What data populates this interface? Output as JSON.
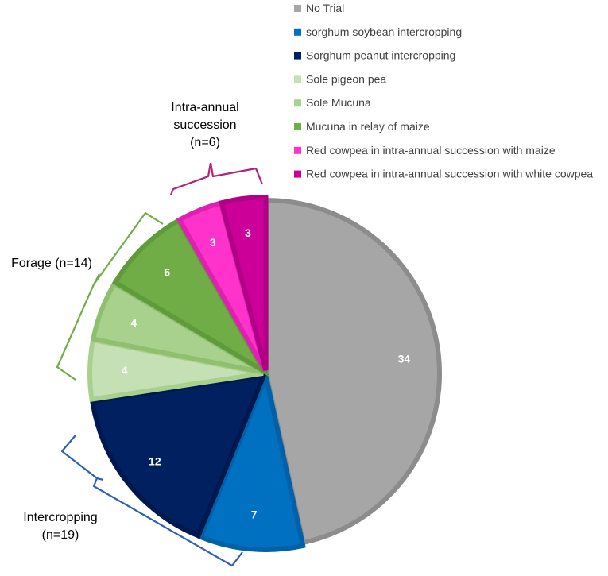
{
  "chart_data": {
    "type": "pie",
    "title": "",
    "slices": [
      {
        "label": "No Trial",
        "value": 34,
        "color": "#a6a6a6",
        "border": "#8c8c8c"
      },
      {
        "label": "sorghum soybean intercropping",
        "value": 7,
        "color": "#0070c0",
        "border": "#0060a8"
      },
      {
        "label": "Sorghum peanut intercropping",
        "value": 12,
        "color": "#002060",
        "border": "#001850"
      },
      {
        "label": "Sole pigeon pea",
        "value": 4,
        "color": "#c5e0b4",
        "border": "#a9d18e"
      },
      {
        "label": "Sole Mucuna",
        "value": 4,
        "color": "#a9d18e",
        "border": "#8fbf6f"
      },
      {
        "label": "Mucuna in relay of maize",
        "value": 6,
        "color": "#70ad47",
        "border": "#5f9a3b"
      },
      {
        "label": "Red cowpea in intra-annual succession with maize",
        "value": 3,
        "color": "#ff33cc",
        "border": "#e020b0"
      },
      {
        "label": "Red cowpea in intra-annual succession with white cowpea",
        "value": 3,
        "color": "#cc0099",
        "border": "#b00085"
      }
    ],
    "legend_position": "top-right",
    "groups": [
      {
        "label_lines": [
          "Intra-annual",
          "succession",
          "(n=6)"
        ],
        "color": "#b0237f"
      },
      {
        "label_lines": [
          "Forage  (n=14)"
        ],
        "color": "#70ad47"
      },
      {
        "label_lines": [
          "Intercropping",
          "(n=19)"
        ],
        "color": "#2e5fb8"
      }
    ]
  }
}
